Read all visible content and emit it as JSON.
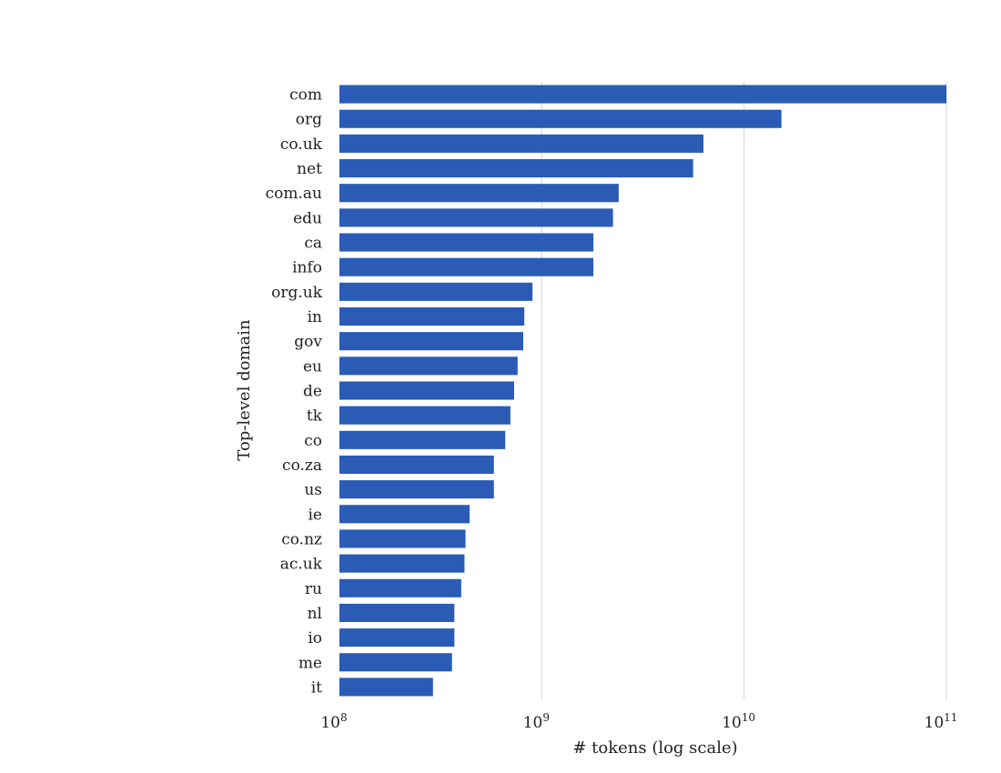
{
  "chart_data": {
    "type": "bar",
    "orientation": "horizontal",
    "title": "",
    "xlabel": "# tokens (log scale)",
    "ylabel": "Top-level domain",
    "xscale": "log",
    "xlim": [
      100000000,
      100000000000
    ],
    "xticks": [
      {
        "value": 100000000,
        "base": "10",
        "exp": "8"
      },
      {
        "value": 1000000000,
        "base": "10",
        "exp": "9"
      },
      {
        "value": 10000000000,
        "base": "10",
        "exp": "10"
      },
      {
        "value": 100000000000,
        "base": "10",
        "exp": "11"
      }
    ],
    "grid": "vertical",
    "bar_color": "#2a5cb5",
    "categories": [
      "com",
      "org",
      "co.uk",
      "net",
      "com.au",
      "edu",
      "ca",
      "info",
      "org.uk",
      "in",
      "gov",
      "eu",
      "de",
      "tk",
      "co",
      "co.za",
      "us",
      "ie",
      "co.nz",
      "ac.uk",
      "ru",
      "nl",
      "io",
      "me",
      "it"
    ],
    "values": [
      100000000000,
      15300000000,
      6300000000,
      5600000000,
      2400000000,
      2250000000,
      1800000000,
      1800000000,
      900000000,
      820000000,
      810000000,
      760000000,
      730000000,
      700000000,
      660000000,
      580000000,
      580000000,
      440000000,
      420000000,
      415000000,
      400000000,
      370000000,
      370000000,
      360000000,
      290000000
    ]
  }
}
